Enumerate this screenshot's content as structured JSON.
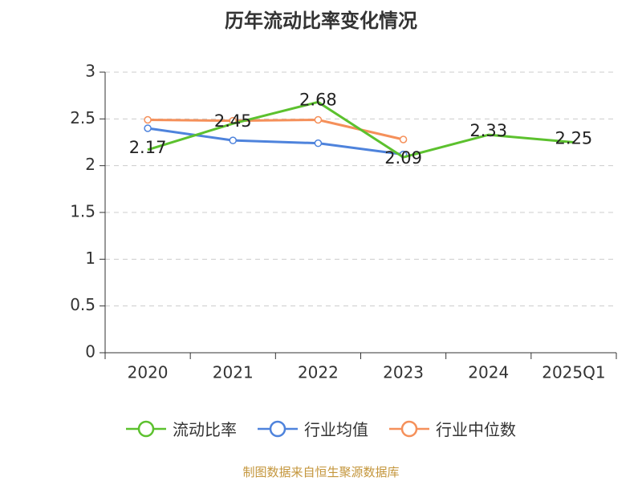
{
  "chart_data": {
    "type": "line",
    "title": "历年流动比率变化情况",
    "categories": [
      "2020",
      "2021",
      "2022",
      "2023",
      "2024",
      "2025Q1"
    ],
    "ylim": [
      0,
      3
    ],
    "yticks": [
      "0",
      "0.5",
      "1",
      "1.5",
      "2",
      "2.5",
      "3"
    ],
    "grid": true,
    "legend_position": "bottom",
    "series": [
      {
        "name": "流动比率",
        "color": "#5cc12e",
        "values": [
          2.17,
          2.45,
          2.68,
          2.09,
          2.33,
          2.25
        ],
        "labels": [
          "2.17",
          "2.45",
          "2.68",
          "2.09",
          "2.33",
          "2.25"
        ]
      },
      {
        "name": "行业均值",
        "color": "#4e83dc",
        "values": [
          2.4,
          2.27,
          2.24,
          2.12,
          null,
          null
        ]
      },
      {
        "name": "行业中位数",
        "color": "#f5905a",
        "values": [
          2.49,
          2.48,
          2.49,
          2.28,
          null,
          null
        ]
      }
    ],
    "source": "制图数据来自恒生聚源数据库"
  }
}
